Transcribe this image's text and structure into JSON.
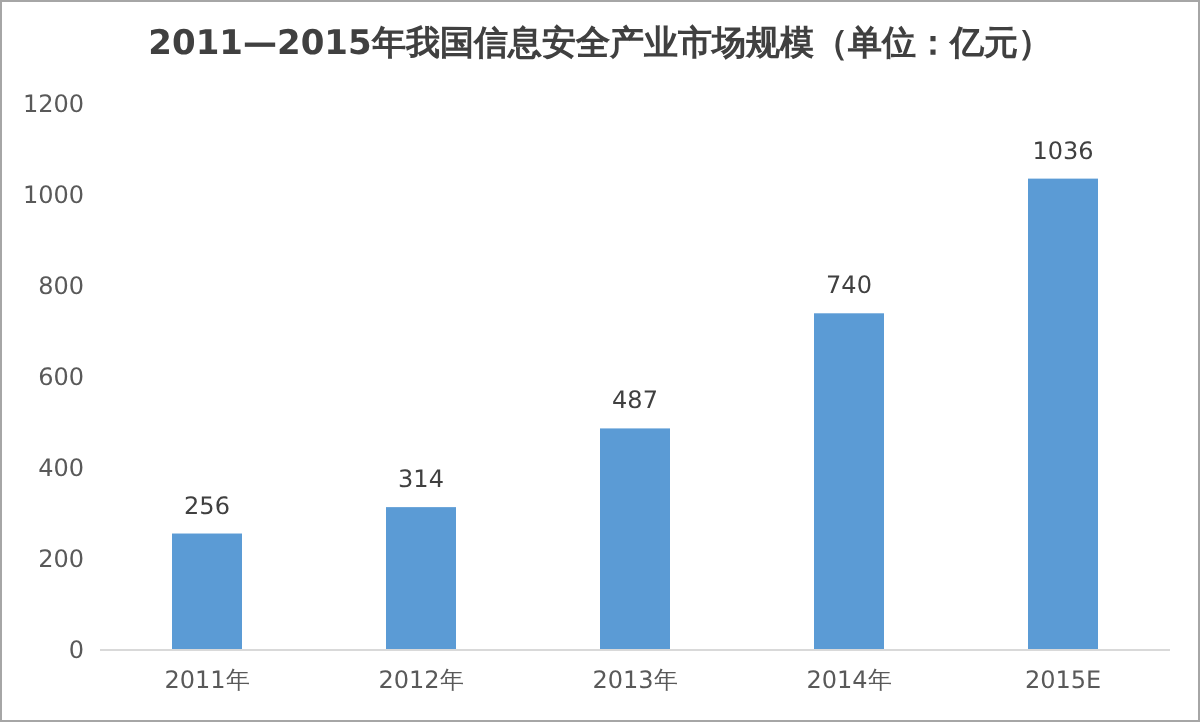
{
  "chart_data": {
    "type": "bar",
    "title": "2011—2015年我国信息安全产业市场规模（单位：亿元）",
    "categories": [
      "2011年",
      "2012年",
      "2013年",
      "2014年",
      "2015E"
    ],
    "values": [
      256,
      314,
      487,
      740,
      1036
    ],
    "color": "#5b9bd5",
    "ylim": [
      0,
      1200
    ],
    "yticks": [
      0,
      200,
      400,
      600,
      800,
      1000,
      1200
    ],
    "data_labels": true
  }
}
